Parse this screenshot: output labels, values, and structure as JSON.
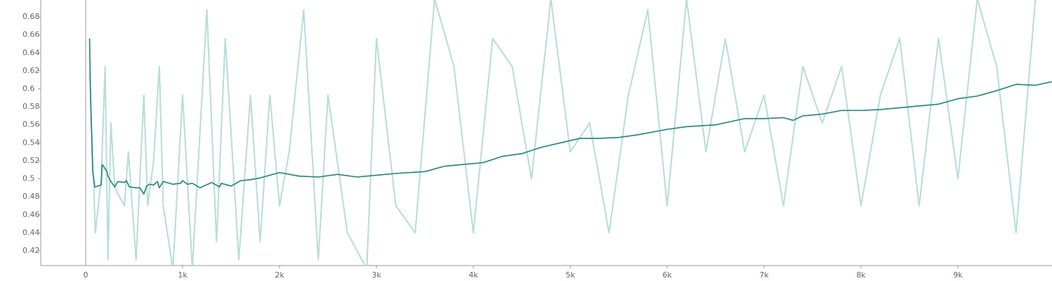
{
  "chart_data": {
    "type": "line",
    "xlim": [
      -464,
      9971
    ],
    "ylim": [
      0.4036,
      0.6988
    ],
    "xticks": [
      0,
      {
        "value": 1000,
        "label": "1k"
      },
      {
        "value": 2000,
        "label": "2k"
      },
      {
        "value": 3000,
        "label": "3k"
      },
      {
        "value": 4000,
        "label": "4k"
      },
      {
        "value": 5000,
        "label": "5k"
      },
      {
        "value": 6000,
        "label": "6k"
      },
      {
        "value": 7000,
        "label": "7k"
      },
      {
        "value": 8000,
        "label": "8k"
      },
      {
        "value": 9000,
        "label": "9k"
      }
    ],
    "yticks": [
      0.42,
      0.44,
      0.46,
      0.48,
      0.5,
      0.52,
      0.54,
      0.56,
      0.58,
      0.6,
      0.62,
      0.64,
      0.66,
      0.68
    ],
    "series": [
      {
        "color": "#b2dfd9",
        "x": [
          40,
          100,
          160,
          200,
          230,
          260,
          300,
          400,
          440,
          520,
          600,
          640,
          700,
          760,
          800,
          900,
          1000,
          1100,
          1250,
          1350,
          1440,
          1580,
          1700,
          1800,
          1900,
          2000,
          2100,
          2250,
          2400,
          2500,
          2700,
          2900,
          3000,
          3200,
          3400,
          3600,
          3800,
          4000,
          4200,
          4400,
          4600,
          4800,
          5000,
          5200,
          5400,
          5600,
          5800,
          6000,
          6200,
          6400,
          6600,
          6800,
          7000,
          7200,
          7400,
          7600,
          7800,
          8000,
          8200,
          8400,
          8600,
          8800,
          9000,
          9200,
          9400,
          9600,
          9800
        ],
        "values": [
          0.62,
          0.44,
          0.5,
          0.625,
          0.41,
          0.562,
          0.49,
          0.47,
          0.53,
          0.41,
          0.593,
          0.47,
          0.52,
          0.625,
          0.47,
          0.4,
          0.593,
          0.4,
          0.688,
          0.43,
          0.656,
          0.41,
          0.593,
          0.43,
          0.593,
          0.47,
          0.53,
          0.688,
          0.41,
          0.593,
          0.44,
          0.4,
          0.656,
          0.47,
          0.44,
          0.7,
          0.625,
          0.44,
          0.656,
          0.625,
          0.5,
          0.7,
          0.53,
          0.562,
          0.44,
          0.593,
          0.688,
          0.47,
          0.7,
          0.53,
          0.656,
          0.53,
          0.593,
          0.47,
          0.625,
          0.562,
          0.625,
          0.47,
          0.593,
          0.656,
          0.47,
          0.656,
          0.5,
          0.7,
          0.625,
          0.44,
          0.7
        ]
      },
      {
        "color": "#128a7d",
        "x": [
          40,
          50,
          72,
          94,
          160,
          170,
          220,
          230,
          260,
          300,
          330,
          400,
          420,
          450,
          520,
          560,
          600,
          630,
          660,
          700,
          740,
          760,
          800,
          900,
          980,
          1000,
          1050,
          1100,
          1180,
          1300,
          1380,
          1400,
          1500,
          1600,
          1700,
          1800,
          2000,
          2200,
          2400,
          2600,
          2800,
          3000,
          3200,
          3500,
          3700,
          3900,
          4100,
          4300,
          4500,
          4700,
          4900,
          5100,
          5300,
          5500,
          5700,
          6000,
          6200,
          6500,
          6800,
          7000,
          7200,
          7300,
          7400,
          7600,
          7800,
          8000,
          8200,
          8400,
          8600,
          8800,
          9000,
          9200,
          9400,
          9600,
          9800,
          9971
        ],
        "values": [
          0.656,
          0.592,
          0.509,
          0.491,
          0.493,
          0.516,
          0.508,
          0.503,
          0.497,
          0.491,
          0.497,
          0.496,
          0.498,
          0.491,
          0.49,
          0.49,
          0.483,
          0.492,
          0.494,
          0.493,
          0.497,
          0.49,
          0.497,
          0.494,
          0.495,
          0.498,
          0.494,
          0.495,
          0.49,
          0.496,
          0.491,
          0.495,
          0.492,
          0.498,
          0.499,
          0.501,
          0.507,
          0.503,
          0.502,
          0.505,
          0.502,
          0.504,
          0.506,
          0.508,
          0.514,
          0.516,
          0.518,
          0.525,
          0.528,
          0.535,
          0.54,
          0.545,
          0.545,
          0.546,
          0.549,
          0.555,
          0.558,
          0.56,
          0.567,
          0.567,
          0.568,
          0.565,
          0.57,
          0.572,
          0.576,
          0.576,
          0.577,
          0.579,
          0.581,
          0.583,
          0.589,
          0.592,
          0.598,
          0.605,
          0.604,
          0.608
        ]
      }
    ]
  }
}
